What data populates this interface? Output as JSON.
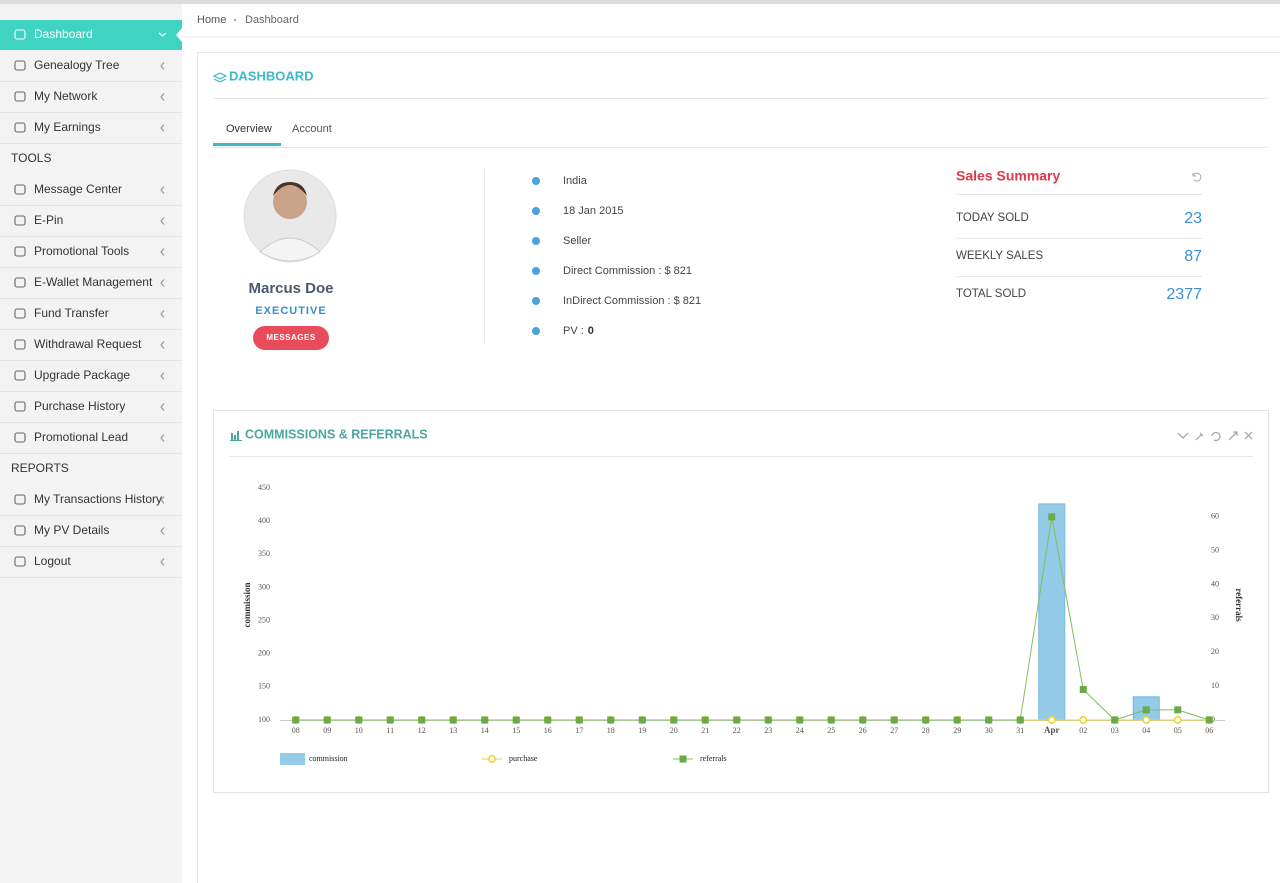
{
  "sidebar": [
    {
      "label": "Dashboard"
    },
    {
      "label": "Genealogy Tree"
    },
    {
      "label": "My Network"
    },
    {
      "label": "My Earnings"
    },
    {
      "heading": "TOOLS"
    },
    {
      "label": "Message Center"
    },
    {
      "label": "E-Pin"
    },
    {
      "label": "Promotional Tools"
    },
    {
      "label": "E-Wallet Management"
    },
    {
      "label": "Fund Transfer"
    },
    {
      "label": "Withdrawal Request"
    },
    {
      "label": "Upgrade Package"
    },
    {
      "label": "Purchase History"
    },
    {
      "label": "Promotional Lead"
    },
    {
      "heading": "REPORTS"
    },
    {
      "label": "My Transactions History"
    },
    {
      "label": "My PV Details"
    },
    {
      "label": "Logout"
    }
  ],
  "breadcrumb": [
    "Home",
    "Dashboard"
  ],
  "panel": {
    "title": "DASHBOARD",
    "tabs": [
      "Overview",
      "Account"
    ]
  },
  "profile": {
    "name": "Marcus Doe",
    "role": "EXECUTIVE",
    "button": "MESSAGES"
  },
  "details": [
    "India",
    "18 Jan 2015",
    "Seller",
    "Direct Commission : $ 821",
    "InDirect Commission : $ 821"
  ],
  "pv": {
    "label": "PV :",
    "value": 0
  },
  "sales_summary": {
    "title": "Sales Summary",
    "rows": [
      {
        "label": "TODAY SOLD",
        "value": 23
      },
      {
        "label": "WEEKLY SALES",
        "value": 87
      },
      {
        "label": "TOTAL SOLD",
        "value": 2377
      }
    ]
  },
  "chart_panel_title": "COMMISSIONS & REFERRALS",
  "chart_data": {
    "type": "bar-line",
    "categories": [
      "08",
      "09",
      "10",
      "11",
      "12",
      "13",
      "14",
      "15",
      "16",
      "17",
      "18",
      "19",
      "20",
      "21",
      "22",
      "23",
      "24",
      "25",
      "26",
      "27",
      "28",
      "29",
      "30",
      "31",
      "Apr",
      "02",
      "03",
      "04",
      "05",
      "06"
    ],
    "y_label": "commission",
    "y2_label": "referrals",
    "ylim": [
      100,
      450
    ],
    "yticks": [
      100,
      150,
      200,
      250,
      300,
      350,
      400,
      450
    ],
    "y2lim": [
      0,
      68.5
    ],
    "y2ticks": [
      0,
      10,
      20,
      30,
      40,
      50,
      60
    ],
    "series": [
      {
        "name": "commission",
        "kind": "bar",
        "color": "#93cbe8",
        "values": [
          100,
          100,
          100,
          100,
          100,
          100,
          100,
          100,
          100,
          100,
          100,
          100,
          100,
          100,
          100,
          100,
          100,
          100,
          100,
          100,
          100,
          100,
          100,
          100,
          426,
          100,
          100,
          135,
          100,
          100
        ]
      },
      {
        "name": "purchase",
        "kind": "line",
        "axis": "y2",
        "color": "#f2d12c",
        "values": [
          0,
          0,
          0,
          0,
          0,
          0,
          0,
          0,
          0,
          0,
          0,
          0,
          0,
          0,
          0,
          0,
          0,
          0,
          0,
          0,
          0,
          0,
          0,
          0,
          0,
          0,
          0,
          0,
          0,
          0
        ]
      },
      {
        "name": "referrals",
        "kind": "line",
        "axis": "y2",
        "color": "#7fbf5f",
        "values": [
          0,
          0,
          0,
          0,
          0,
          0,
          0,
          0,
          0,
          0,
          0,
          0,
          0,
          0,
          0,
          0,
          0,
          0,
          0,
          0,
          0,
          0,
          0,
          0,
          60,
          9,
          0,
          3,
          3,
          0
        ]
      }
    ]
  }
}
